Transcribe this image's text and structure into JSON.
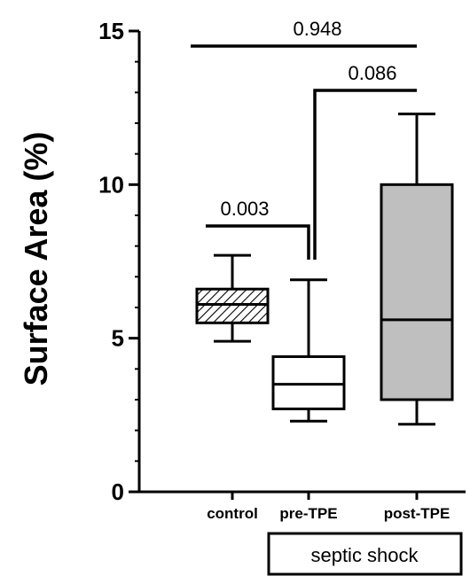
{
  "chart_data": {
    "type": "box",
    "ylabel": "Surface Area (%)",
    "ylim": [
      0,
      15
    ],
    "yticks": [
      "0",
      "5",
      "10",
      "15"
    ],
    "categories": [
      "control",
      "pre-TPE",
      "post-TPE"
    ],
    "boxes": [
      {
        "category": "control",
        "min": 4.9,
        "q1": 5.5,
        "median": 6.1,
        "q3": 6.6,
        "max": 7.7,
        "fill": "hatched"
      },
      {
        "category": "pre-TPE",
        "min": 2.3,
        "q1": 2.7,
        "median": 3.5,
        "q3": 4.4,
        "max": 6.9,
        "fill": "#ffffff"
      },
      {
        "category": "post-TPE",
        "min": 2.2,
        "q1": 3.0,
        "median": 5.6,
        "q3": 10.0,
        "max": 12.3,
        "fill": "#bfbfbf"
      }
    ],
    "comparisons": [
      {
        "from": "control",
        "to": "pre-TPE",
        "p": "0.003"
      },
      {
        "from": "pre-TPE",
        "to": "post-TPE",
        "p": "0.086"
      },
      {
        "from": "control",
        "to": "post-TPE",
        "p": "0.948"
      }
    ],
    "group_label": "septic shock",
    "group_categories": [
      "pre-TPE",
      "post-TPE"
    ]
  }
}
